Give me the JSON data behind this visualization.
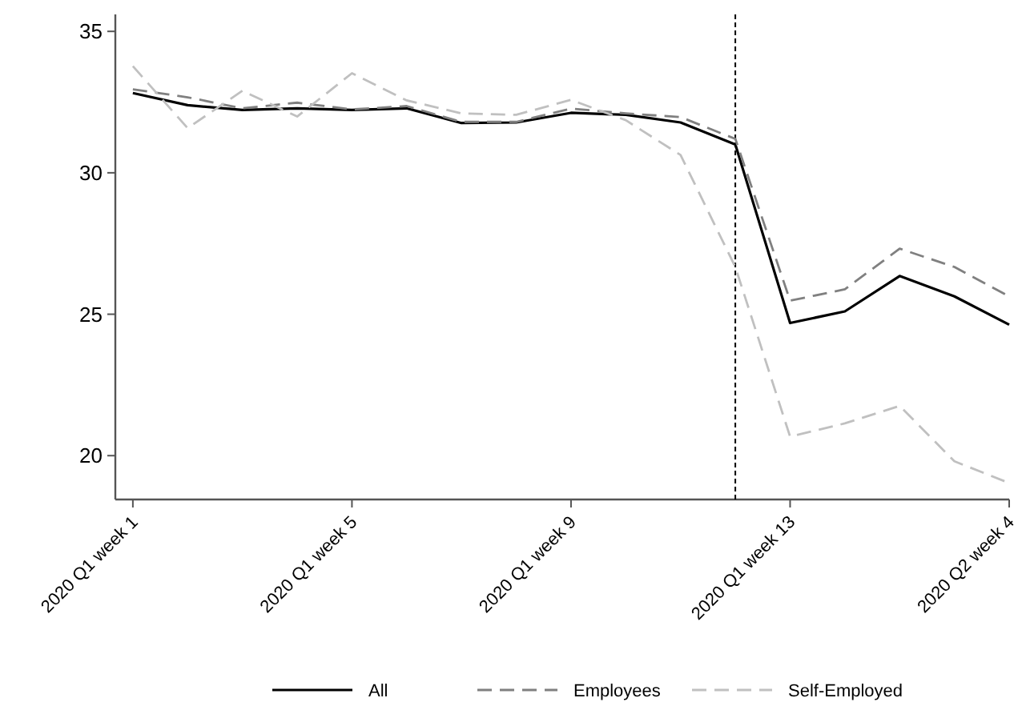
{
  "chart_data": {
    "type": "line",
    "categories": [
      "2020 Q1 week 1",
      null,
      null,
      null,
      "2020 Q1 week 5",
      null,
      null,
      null,
      "2020 Q1 week 9",
      null,
      null,
      null,
      "2020 Q1 week 13",
      null,
      null,
      null,
      "2020 Q2 week 4"
    ],
    "series": [
      {
        "name": "All",
        "color": "#000000",
        "line_style": "solid",
        "values": [
          32.82,
          32.39,
          32.22,
          32.28,
          32.22,
          32.28,
          31.76,
          31.78,
          32.12,
          32.05,
          31.78,
          31.0,
          24.69,
          25.1,
          26.35,
          25.63,
          24.63
        ]
      },
      {
        "name": "Employees",
        "color": "#808080",
        "line_style": "dashed",
        "values": [
          32.95,
          32.67,
          32.28,
          32.48,
          32.24,
          32.36,
          31.8,
          31.8,
          32.27,
          32.1,
          31.97,
          31.2,
          25.48,
          25.88,
          27.32,
          26.67,
          25.63
        ]
      },
      {
        "name": "Self-Employed",
        "color": "#c0c0c0",
        "line_style": "dashed",
        "values": [
          33.77,
          31.58,
          32.9,
          31.99,
          33.52,
          32.56,
          32.1,
          32.05,
          32.58,
          31.86,
          30.63,
          26.67,
          20.67,
          21.14,
          21.76,
          19.8,
          19.03
        ]
      }
    ],
    "ylim": [
      18.45,
      35.6
    ],
    "yticks": [
      20,
      25,
      30,
      35
    ],
    "legend": "bottom",
    "marker": "none"
  }
}
